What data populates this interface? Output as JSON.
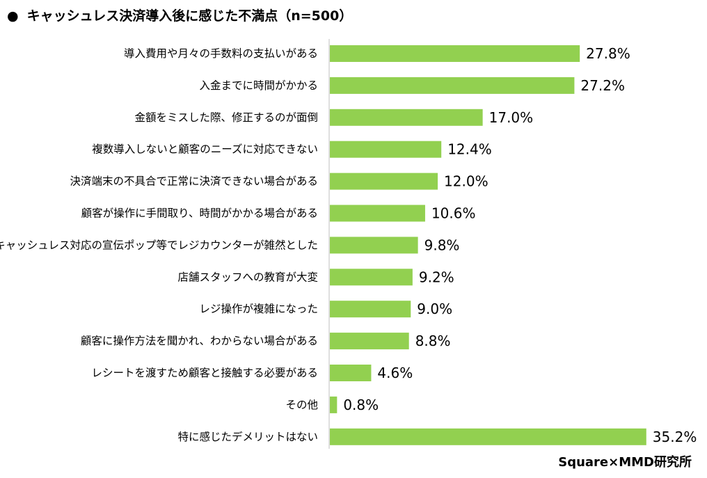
{
  "chart_data": {
    "type": "bar",
    "orientation": "horizontal",
    "title": "キャッシュレス決済導入後に感じた不満点（n=500）",
    "categories": [
      "導入費用や月々の手数料の支払いがある",
      "入金までに時間がかかる",
      "金額をミスした際、修正するのが面倒",
      "複数導入しないと顧客のニーズに対応できない",
      "決済端末の不具合で正常に決済できない場合がある",
      "顧客が操作に手間取り、時間がかかる場合がある",
      "キャッシュレス対応の宣伝ポップ等でレジカウンターが雑然とした",
      "店舗スタッフへの教育が大変",
      "レジ操作が複雑になった",
      "顧客に操作方法を聞かれ、わからない場合がある",
      "レシートを渡すため顧客と接触する必要がある",
      "その他",
      "特に感じたデメリットはない"
    ],
    "values": [
      27.8,
      27.2,
      17.0,
      12.4,
      12.0,
      10.6,
      9.8,
      9.2,
      9.0,
      8.8,
      4.6,
      0.8,
      35.2
    ],
    "value_labels": [
      "27.8%",
      "27.2%",
      "17.0%",
      "12.4%",
      "12.0%",
      "10.6%",
      "9.8%",
      "9.2%",
      "9.0%",
      "8.8%",
      "4.6%",
      "0.8%",
      "35.2%"
    ],
    "xlim": [
      0,
      40
    ],
    "bar_color": "#92d050",
    "axis_color": "#bfbfbf",
    "grid": false,
    "legend": "none"
  },
  "bullet": "●",
  "source": "Square×MMD研究所"
}
